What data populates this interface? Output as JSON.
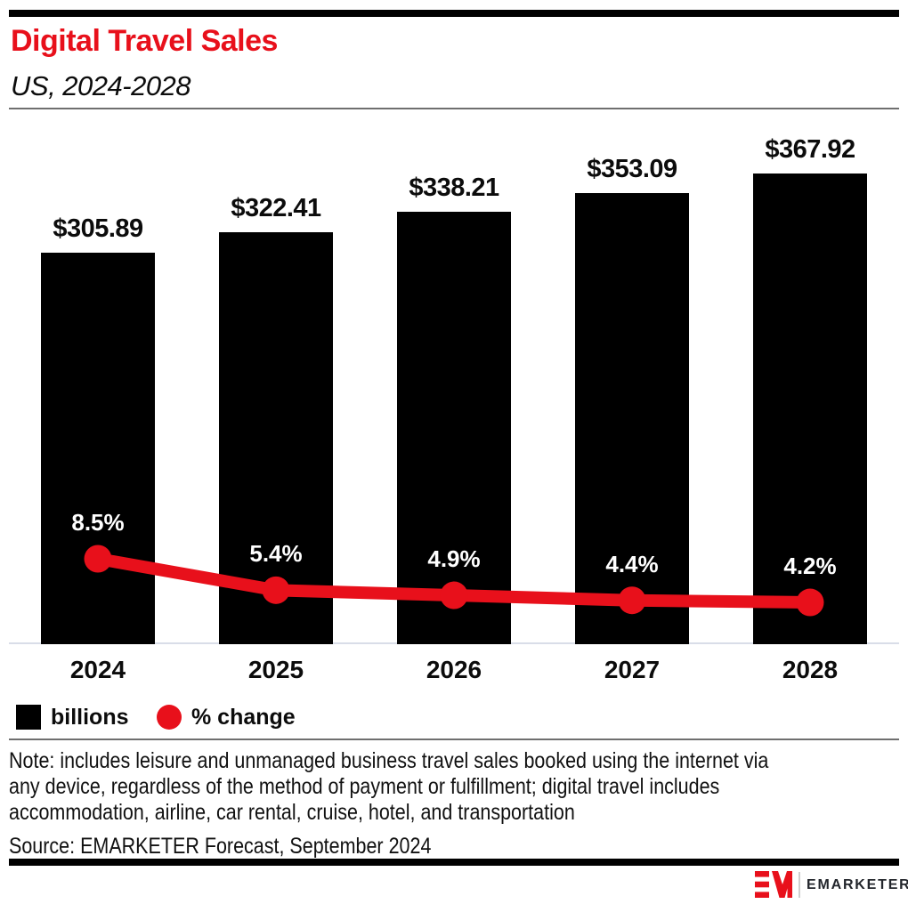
{
  "header": {
    "title": "Digital Travel Sales",
    "subtitle": "US, 2024-2028"
  },
  "chart_data": {
    "type": "combo",
    "categories": [
      "2024",
      "2025",
      "2026",
      "2027",
      "2028"
    ],
    "series": [
      {
        "name": "billions",
        "type": "bar",
        "unit": "US$ billions",
        "values": [
          305.89,
          322.41,
          338.21,
          353.09,
          367.92
        ],
        "labels": [
          "$305.89",
          "$322.41",
          "$338.21",
          "$353.09",
          "$367.92"
        ],
        "color": "#000000"
      },
      {
        "name": "% change",
        "type": "line",
        "unit": "percent",
        "values": [
          8.5,
          5.4,
          4.9,
          4.4,
          4.2
        ],
        "labels": [
          "8.5%",
          "5.4%",
          "4.9%",
          "4.4%",
          "4.2%"
        ],
        "color": "#e8101b"
      }
    ],
    "value_labels_shown": true,
    "axes_shown": false,
    "grid": false,
    "legend_position": "bottom-left"
  },
  "legend": {
    "items": [
      {
        "label": "billions",
        "swatch": "square",
        "color": "#000000"
      },
      {
        "label": "% change",
        "swatch": "circle",
        "color": "#e8101b"
      }
    ]
  },
  "note": {
    "lines": [
      "Note: includes leisure and unmanaged business travel sales booked using the internet via",
      "any device, regardless of the method of payment or fulfillment; digital travel includes",
      "accommodation, airline, car rental, cruise, hotel, and transportation"
    ]
  },
  "source": {
    "text": "Source: EMARKETER Forecast, September 2024"
  },
  "branding": {
    "monogram": "EM",
    "wordmark": "EMARKETER"
  },
  "colors": {
    "accent_red": "#e8101b",
    "bar_black": "#000000",
    "baseline_gray": "#d9dde8",
    "rule_gray": "#6f6f6f",
    "logo_divider_gray": "#cfcfcf",
    "text_black": "#0c0c0c"
  }
}
